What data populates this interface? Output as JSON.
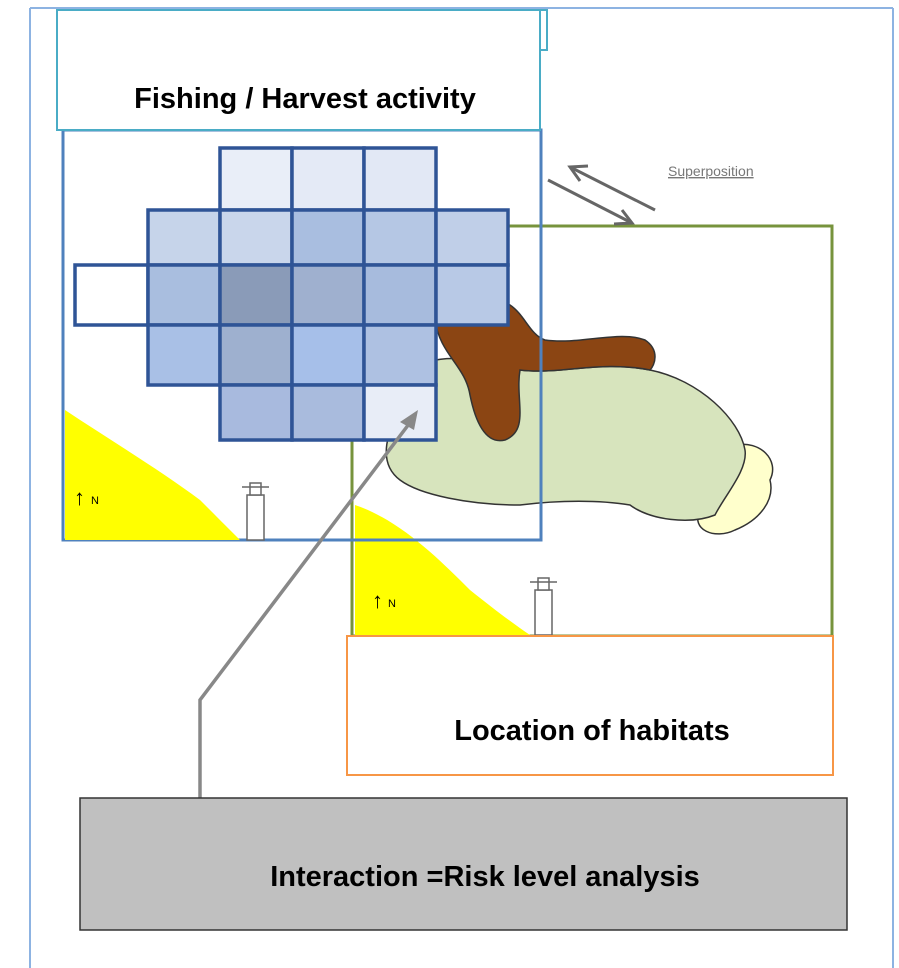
{
  "title": "Fishing / Harvest activity",
  "superposition_label": "Superposition",
  "north_labels": [
    "N",
    "N"
  ],
  "habitats_label": "Location of habitats",
  "interaction_label": "Interaction =Risk level analysis"
}
